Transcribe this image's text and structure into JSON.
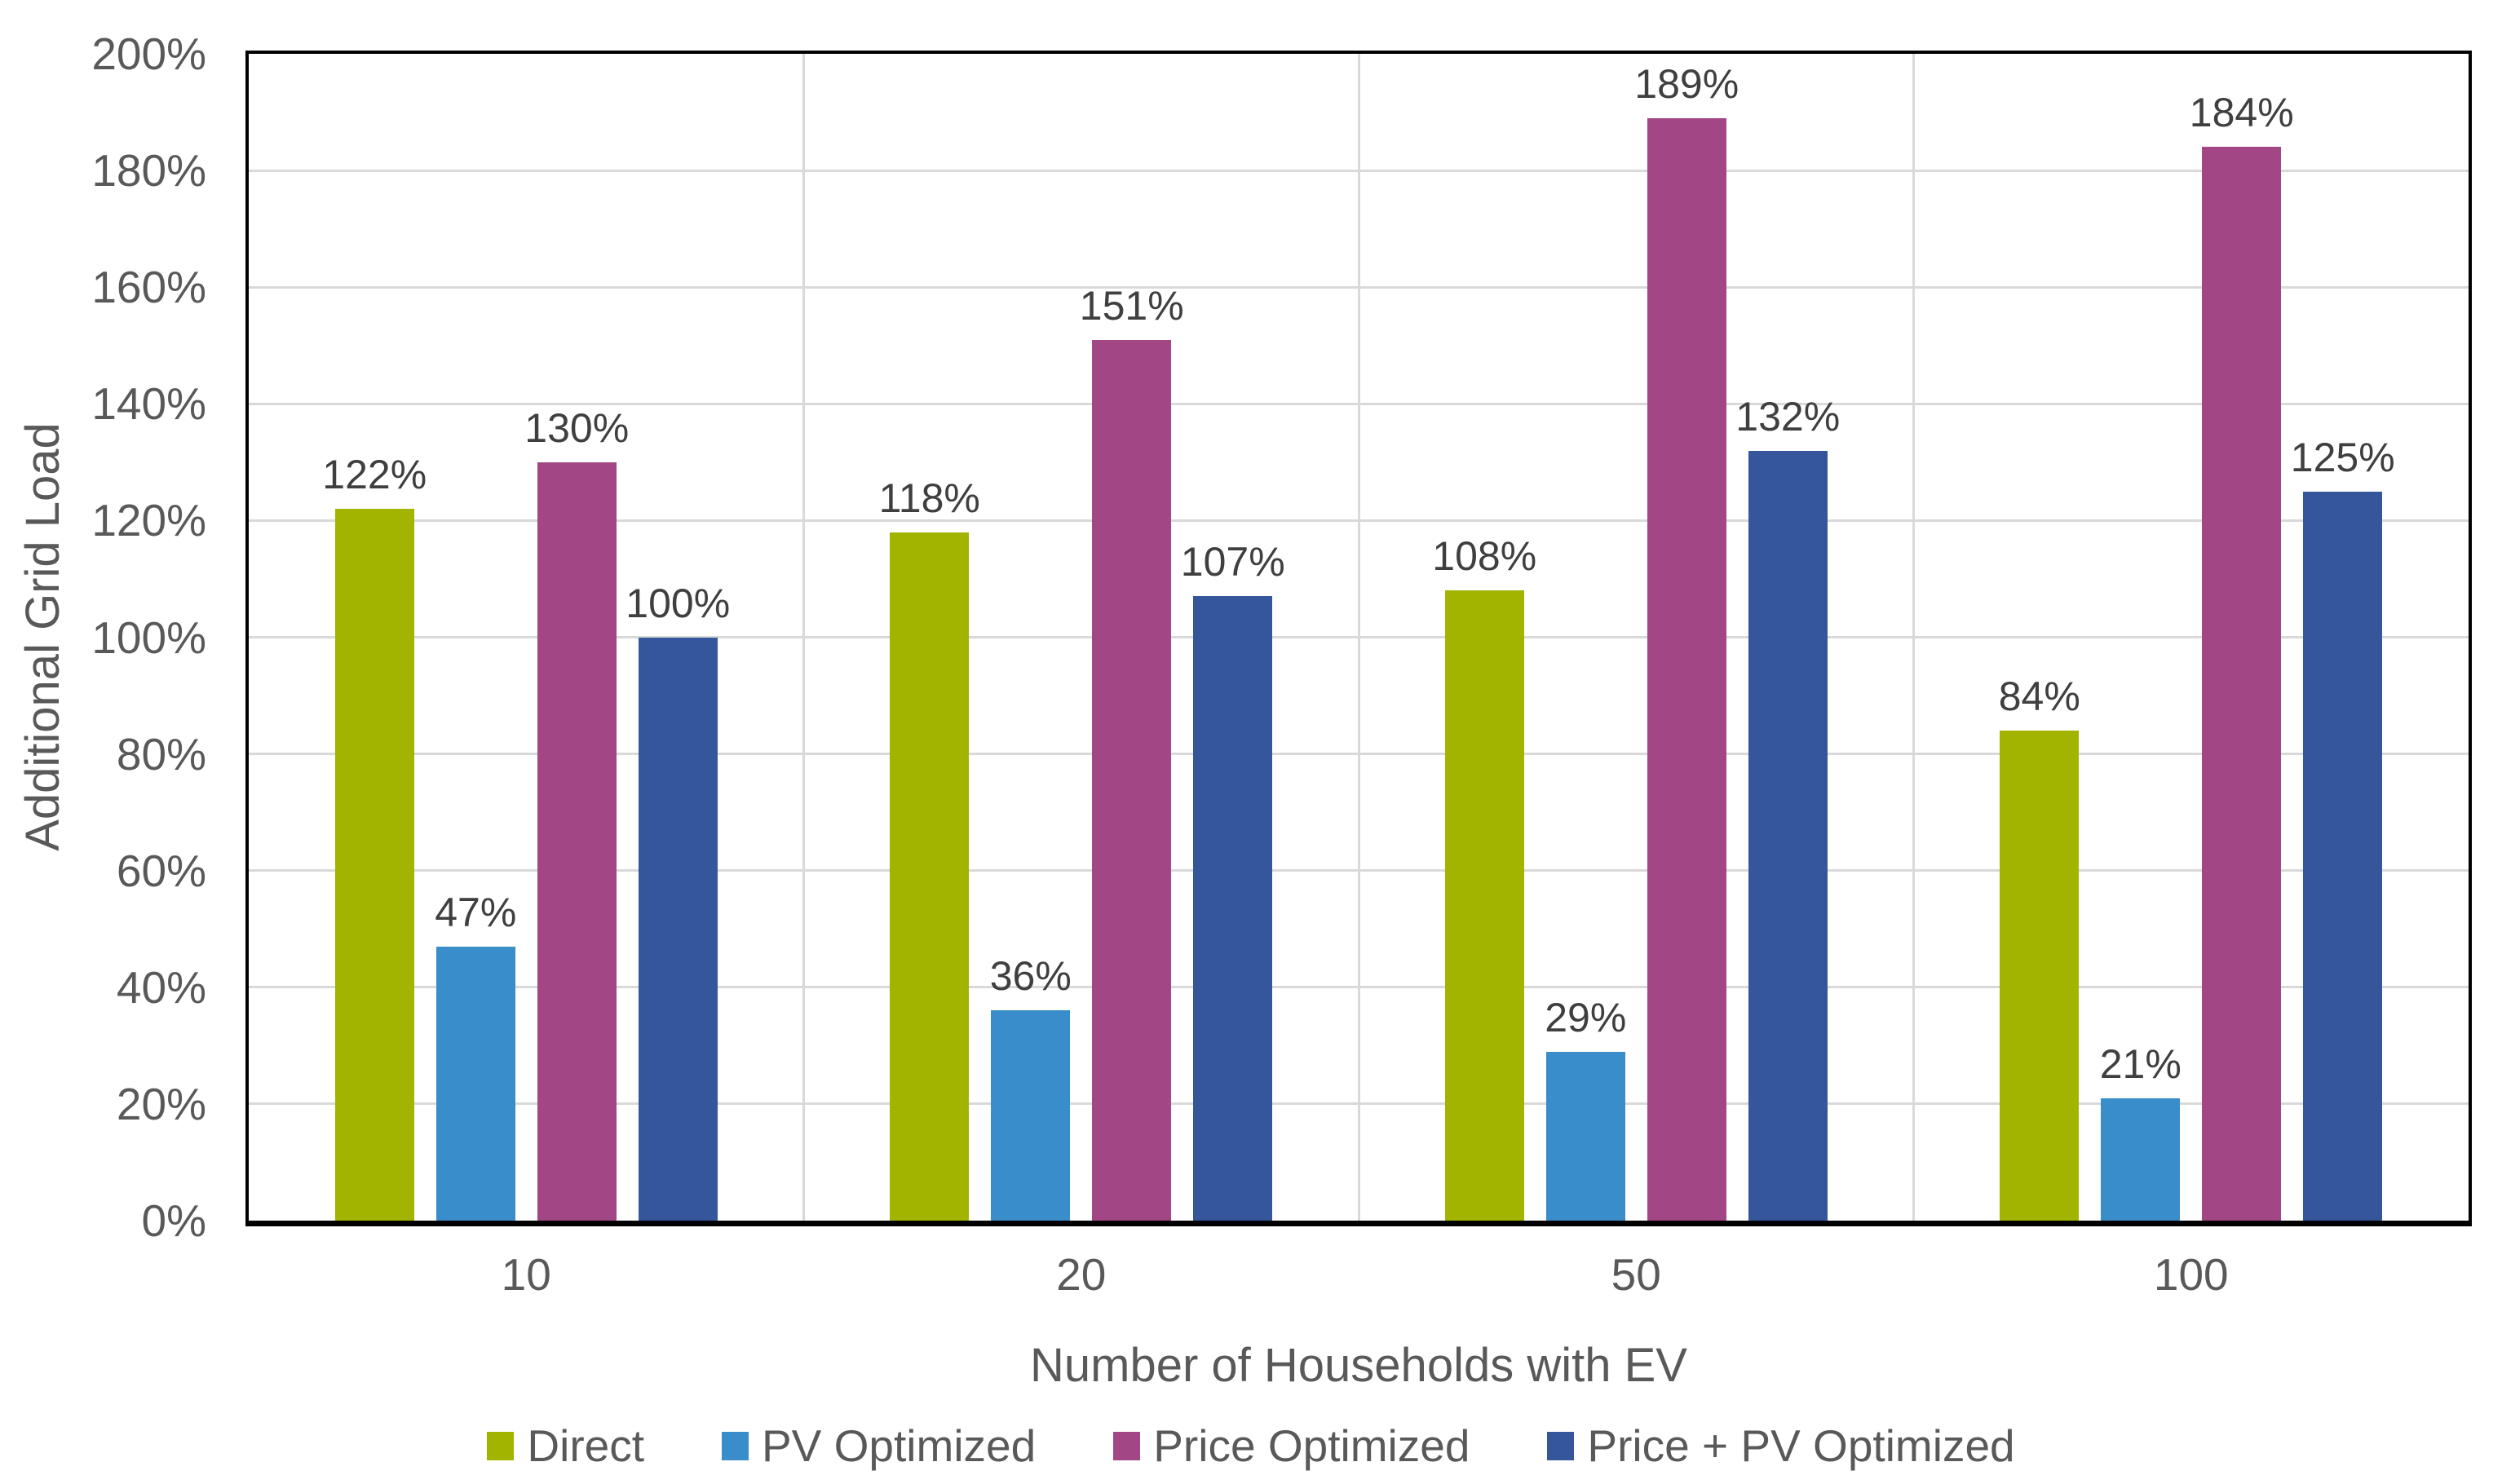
{
  "chart_data": {
    "type": "bar",
    "title": "",
    "xlabel": "Number of Households with EV",
    "ylabel": "Additional Grid Load",
    "categories": [
      "10",
      "20",
      "50",
      "100"
    ],
    "series": [
      {
        "name": "Direct",
        "color": "#A2B400",
        "values": [
          122,
          118,
          108,
          84
        ]
      },
      {
        "name": "PV Optimized",
        "color": "#388DCA",
        "values": [
          47,
          36,
          29,
          21
        ]
      },
      {
        "name": "Price Optimized",
        "color": "#A34685",
        "values": [
          130,
          151,
          189,
          184
        ]
      },
      {
        "name": "Price + PV Optimized",
        "color": "#35569A",
        "values": [
          100,
          107,
          132,
          125
        ]
      }
    ],
    "data_labels": [
      [
        "122%",
        "118%",
        "108%",
        "84%"
      ],
      [
        "47%",
        "36%",
        "29%",
        "21%"
      ],
      [
        "130%",
        "151%",
        "189%",
        "184%"
      ],
      [
        "100%",
        "107%",
        "132%",
        "125%"
      ]
    ],
    "ylim": [
      0,
      200
    ],
    "ytick_step": 20,
    "ytick_labels": [
      "0%",
      "20%",
      "40%",
      "60%",
      "80%",
      "100%",
      "120%",
      "140%",
      "160%",
      "180%",
      "200%"
    ],
    "grid": true,
    "legend_position": "bottom"
  },
  "colors": {
    "axis_text": "#595959",
    "data_label_text": "#3F3F3F",
    "gridline": "#D9D9D9",
    "axis_line": "#000000",
    "background": "#FFFFFF"
  }
}
